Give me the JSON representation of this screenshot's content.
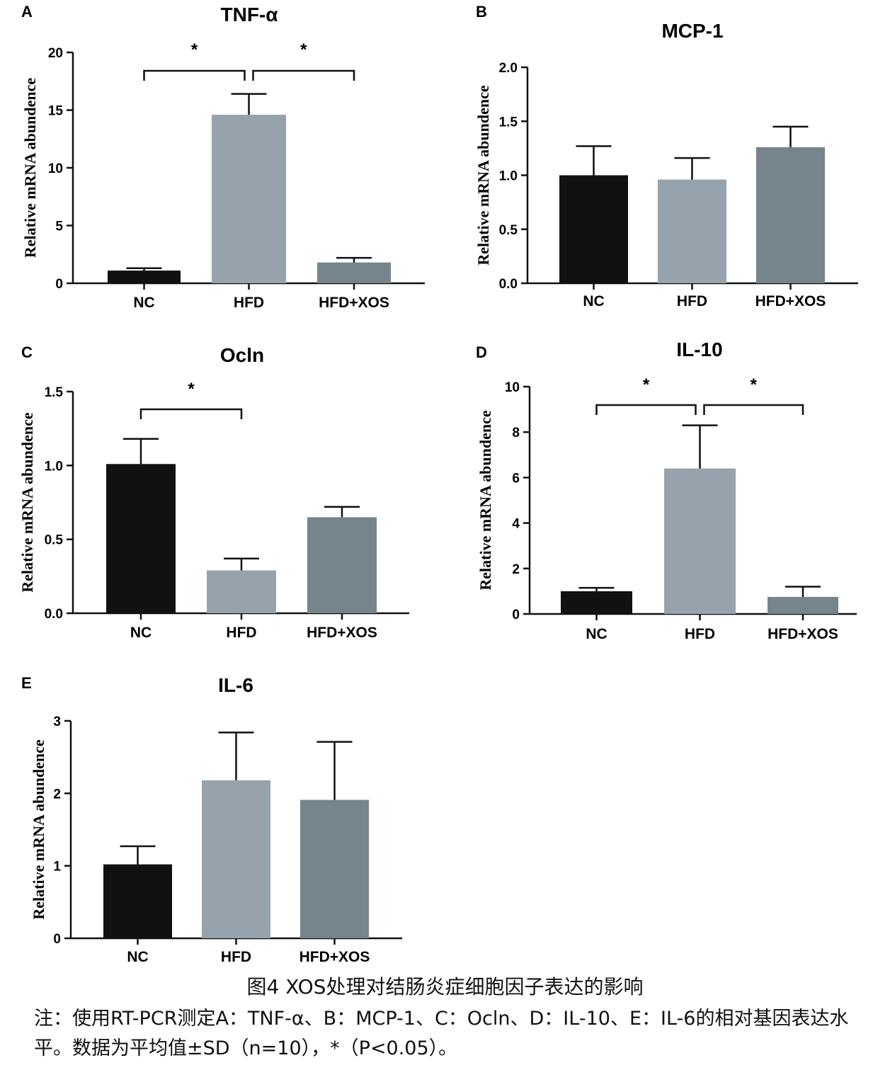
{
  "chart_data": [
    {
      "panel": "A",
      "type": "bar",
      "title": "TNF-α",
      "ylabel": "Relative mRNA abundence",
      "categories": [
        "NC",
        "HFD",
        "HFD+XOS"
      ],
      "values": [
        1.1,
        14.6,
        1.8
      ],
      "errors": [
        0.2,
        1.8,
        0.4
      ],
      "colors": [
        "#111111",
        "#97a3ac",
        "#76848b"
      ],
      "ylim": [
        0,
        20
      ],
      "yticks": [
        "0",
        "5",
        "10",
        "15",
        "20"
      ],
      "ytick_values": [
        0,
        5,
        10,
        15,
        20
      ],
      "significance": [
        {
          "from": 0,
          "to": 1,
          "label": "*"
        },
        {
          "from": 1,
          "to": 2,
          "label": "*"
        }
      ]
    },
    {
      "panel": "B",
      "type": "bar",
      "title": "MCP-1",
      "ylabel": "Relative mRNA abundence",
      "categories": [
        "NC",
        "HFD",
        "HFD+XOS"
      ],
      "values": [
        1.0,
        0.96,
        1.26
      ],
      "errors": [
        0.27,
        0.2,
        0.19
      ],
      "colors": [
        "#111111",
        "#97a3ac",
        "#76848b"
      ],
      "ylim": [
        0,
        2.0
      ],
      "yticks": [
        "0.0",
        "0.5",
        "1.0",
        "1.5",
        "2.0"
      ],
      "ytick_values": [
        0,
        0.5,
        1.0,
        1.5,
        2.0
      ],
      "significance": []
    },
    {
      "panel": "C",
      "type": "bar",
      "title": "Ocln",
      "ylabel": "Relative mRNA abundence",
      "categories": [
        "NC",
        "HFD",
        "HFD+XOS"
      ],
      "values": [
        1.01,
        0.29,
        0.65
      ],
      "errors": [
        0.17,
        0.08,
        0.07
      ],
      "colors": [
        "#111111",
        "#97a3ac",
        "#76848b"
      ],
      "ylim": [
        0,
        1.5
      ],
      "yticks": [
        "0.0",
        "0.5",
        "1.0",
        "1.5"
      ],
      "ytick_values": [
        0,
        0.5,
        1.0,
        1.5
      ],
      "significance": [
        {
          "from": 0,
          "to": 1,
          "label": "*"
        }
      ]
    },
    {
      "panel": "D",
      "type": "bar",
      "title": "IL-10",
      "ylabel": "Relative mRNA abundence",
      "categories": [
        "NC",
        "HFD",
        "HFD+XOS"
      ],
      "values": [
        1.0,
        6.4,
        0.75
      ],
      "errors": [
        0.15,
        1.9,
        0.45
      ],
      "colors": [
        "#111111",
        "#97a3ac",
        "#76848b"
      ],
      "ylim": [
        0,
        10
      ],
      "yticks": [
        "0",
        "2",
        "4",
        "6",
        "8",
        "10"
      ],
      "ytick_values": [
        0,
        2,
        4,
        6,
        8,
        10
      ],
      "significance": [
        {
          "from": 0,
          "to": 1,
          "label": "*"
        },
        {
          "from": 1,
          "to": 2,
          "label": "*"
        }
      ]
    },
    {
      "panel": "E",
      "type": "bar",
      "title": "IL-6",
      "ylabel": "Relative mRNA abundence",
      "categories": [
        "NC",
        "HFD",
        "HFD+XOS"
      ],
      "values": [
        1.02,
        2.18,
        1.91
      ],
      "errors": [
        0.25,
        0.66,
        0.8
      ],
      "colors": [
        "#111111",
        "#97a3ac",
        "#76848b"
      ],
      "ylim": [
        0,
        3
      ],
      "yticks": [
        "0",
        "1",
        "2",
        "3"
      ],
      "ytick_values": [
        0,
        1,
        2,
        3
      ],
      "significance": []
    }
  ],
  "caption": {
    "title": "图4 XOS处理对结肠炎症细胞因子表达的影响",
    "note": "注：使用RT-PCR测定A：TNF-α、B：MCP-1、C：Ocln、D：IL-10、E：IL-6的相对基因表达水平。数据为平均值±SD（n=10），*（P<0.05）。"
  }
}
